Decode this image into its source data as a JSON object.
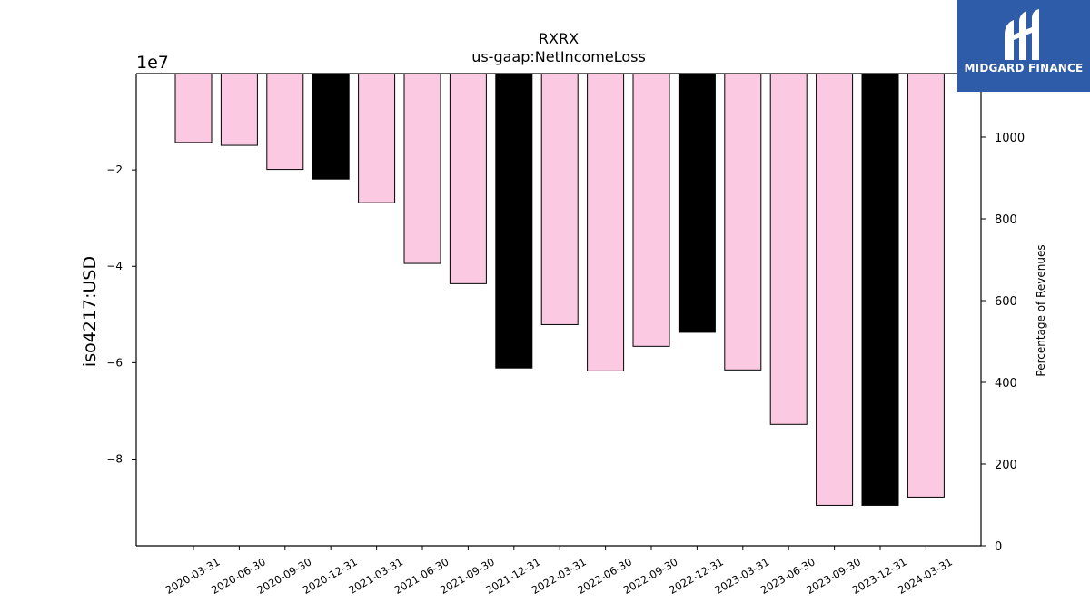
{
  "chart_data": {
    "type": "bar",
    "title": "RXRX",
    "subtitle": "us-gaap:NetIncomeLoss",
    "ylabel": "iso4217:USD",
    "y2label": "Percentage of Revenues",
    "offset_label": "1e7",
    "ylim": [
      -9.8,
      0
    ],
    "y2lim": [
      0,
      1100
    ],
    "yticks": [
      -2,
      -4,
      -6,
      -8
    ],
    "ytick_labels": [
      "−2",
      "−4",
      "−6",
      "−8"
    ],
    "y2ticks": [
      0,
      200,
      400,
      600,
      800,
      1000
    ],
    "y2tick_labels": [
      "0",
      "200",
      "400",
      "600",
      "800",
      "1000"
    ],
    "categories": [
      "2020-03-31",
      "2020-06-30",
      "2020-09-30",
      "2020-12-31",
      "2021-03-31",
      "2021-06-30",
      "2021-09-30",
      "2021-12-31",
      "2022-03-31",
      "2022-06-30",
      "2022-09-30",
      "2022-12-31",
      "2023-03-31",
      "2023-06-30",
      "2023-09-30",
      "2023-12-31",
      "2024-03-31"
    ],
    "values": [
      -1.43,
      -1.49,
      -1.99,
      -2.19,
      -2.68,
      -3.94,
      -4.36,
      -6.11,
      -5.21,
      -6.17,
      -5.66,
      -5.37,
      -6.15,
      -7.28,
      -8.96,
      -8.96,
      -8.79
    ],
    "bar_colors": [
      "#fbcae2",
      "#fbcae2",
      "#fbcae2",
      "#000000",
      "#fbcae2",
      "#fbcae2",
      "#fbcae2",
      "#000000",
      "#fbcae2",
      "#fbcae2",
      "#fbcae2",
      "#000000",
      "#fbcae2",
      "#fbcae2",
      "#fbcae2",
      "#000000",
      "#fbcae2"
    ],
    "grid": false
  },
  "logo": {
    "text": "MIDGARD FINANCE",
    "color": "#2f5ca8"
  }
}
